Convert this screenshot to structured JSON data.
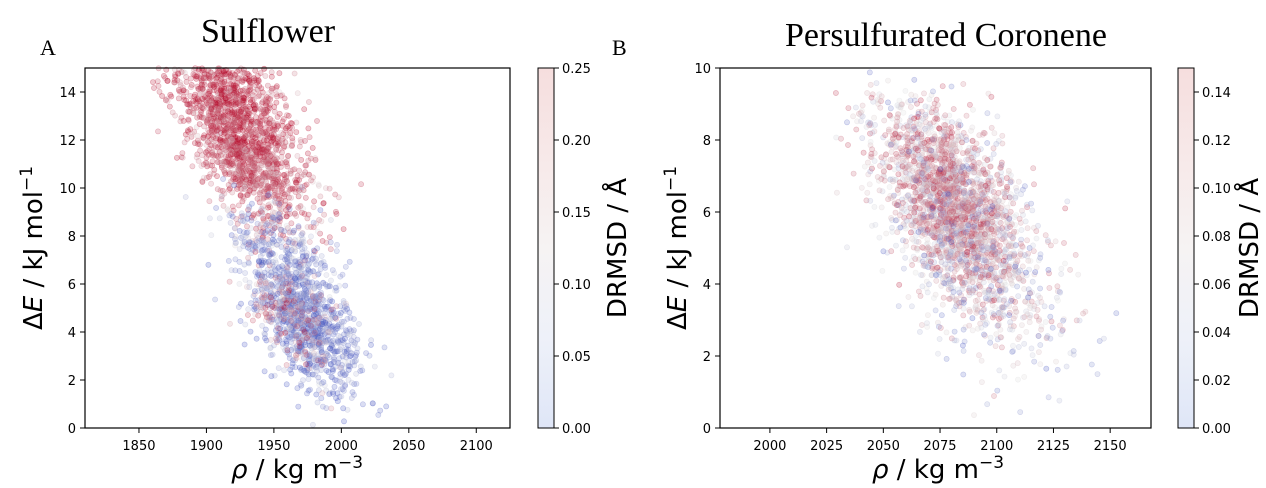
{
  "chart_data": [
    {
      "type": "scatter",
      "panel_label": "A",
      "title": "Sulflower",
      "xlabel_symbol": "ρ",
      "xlabel_unit": " / kg m",
      "xlabel_exp": "−3",
      "ylabel_pre": "Δ",
      "ylabel_var": "E",
      "ylabel_unit": " / kJ mol",
      "ylabel_exp": "−1",
      "xlim": [
        1810,
        2125
      ],
      "ylim": [
        0,
        15
      ],
      "xticks": [
        1850,
        1900,
        1950,
        2000,
        2050,
        2100
      ],
      "yticks": [
        0,
        2,
        4,
        6,
        8,
        10,
        12,
        14
      ],
      "colorbar": {
        "label": "DRMSD / Å",
        "range": [
          0,
          0.25
        ],
        "ticks": [
          "0.00",
          "0.05",
          "0.10",
          "0.15",
          "0.20",
          "0.25"
        ],
        "colormap": "coolwarm",
        "low_color": "#6f8fdc",
        "high_color": "#b40426"
      },
      "clusters": [
        {
          "x": 1920,
          "y": 13.2,
          "sx": 24,
          "sy": 1.8,
          "rho": -0.55,
          "n": 1300,
          "drmsd": 0.23
        },
        {
          "x": 1935,
          "y": 10.8,
          "sx": 22,
          "sy": 1.5,
          "rho": -0.6,
          "n": 650,
          "drmsd": 0.2
        },
        {
          "x": 1975,
          "y": 4.3,
          "sx": 19,
          "sy": 1.4,
          "rho": -0.55,
          "n": 950,
          "drmsd": 0.04
        },
        {
          "x": 1962,
          "y": 4.8,
          "sx": 16,
          "sy": 1.2,
          "rho": -0.5,
          "n": 200,
          "drmsd": 0.18
        },
        {
          "x": 1955,
          "y": 7.2,
          "sx": 22,
          "sy": 1.2,
          "rho": -0.55,
          "n": 300,
          "drmsd": 0.06
        }
      ]
    },
    {
      "type": "scatter",
      "panel_label": "B",
      "title": "Persulfurated Coronene",
      "xlabel_symbol": "ρ",
      "xlabel_unit": " / kg m",
      "xlabel_exp": "−3",
      "ylabel_pre": "Δ",
      "ylabel_var": "E",
      "ylabel_unit": " / kJ mol",
      "ylabel_exp": "−1",
      "xlim": [
        1978,
        2168
      ],
      "ylim": [
        0,
        10
      ],
      "xticks": [
        2000,
        2025,
        2050,
        2075,
        2100,
        2125,
        2150
      ],
      "yticks": [
        0,
        2,
        4,
        6,
        8,
        10
      ],
      "colorbar": {
        "label": "DRMSD / Å",
        "range": [
          0,
          0.15
        ],
        "ticks": [
          "0.00",
          "0.02",
          "0.04",
          "0.06",
          "0.08",
          "0.10",
          "0.12",
          "0.14"
        ],
        "colormap": "coolwarm",
        "low_color": "#6f8fdc",
        "high_color": "#b40426"
      },
      "clusters": [
        {
          "x": 2082,
          "y": 6.0,
          "sx": 17,
          "sy": 1.5,
          "rho": -0.55,
          "n": 1700,
          "drmsd": 0.09
        },
        {
          "x": 2080,
          "y": 6.4,
          "sx": 13,
          "sy": 1.1,
          "rho": -0.5,
          "n": 600,
          "drmsd": 0.11
        },
        {
          "x": 2090,
          "y": 5.0,
          "sx": 20,
          "sy": 1.8,
          "rho": -0.55,
          "n": 500,
          "drmsd": 0.05
        }
      ]
    }
  ]
}
